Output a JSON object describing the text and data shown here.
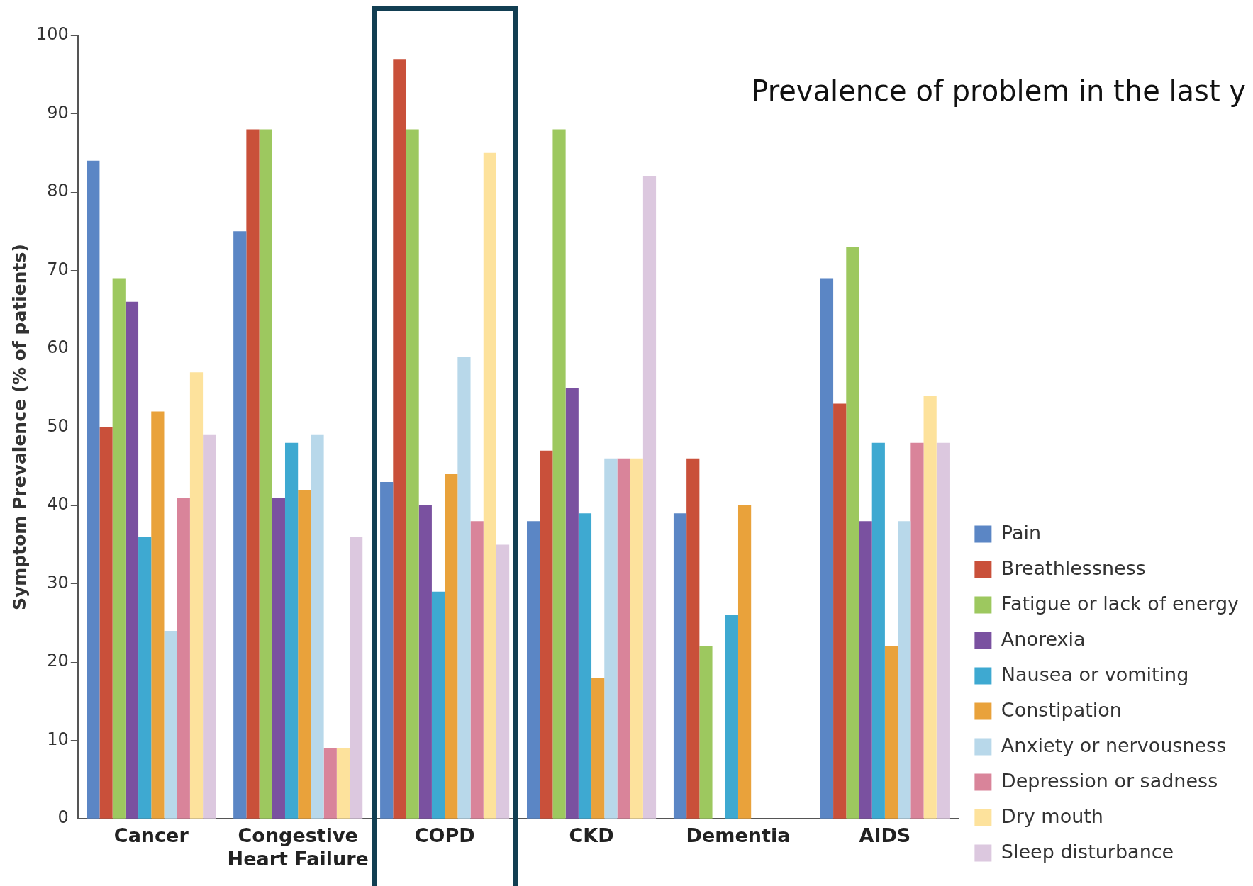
{
  "chart_data": {
    "type": "bar",
    "title": "Prevalence of problem in the last y",
    "ylabel": "Symptom Prevalence (% of patients)",
    "categories": [
      "Cancer",
      "Congestive Heart Failure",
      "COPD",
      "CKD",
      "Dementia",
      "AIDS"
    ],
    "series": [
      {
        "name": "Pain",
        "color": "#5b86c5",
        "values": [
          84,
          75,
          43,
          38,
          39,
          69
        ]
      },
      {
        "name": "Breathlessness",
        "color": "#c9503a",
        "values": [
          50,
          88,
          97,
          47,
          46,
          53
        ]
      },
      {
        "name": "Fatigue or lack of energy",
        "color": "#9dc85f",
        "values": [
          69,
          88,
          88,
          88,
          22,
          73
        ]
      },
      {
        "name": "Anorexia",
        "color": "#7a51a0",
        "values": [
          66,
          41,
          40,
          55,
          null,
          38
        ]
      },
      {
        "name": "Nausea or vomiting",
        "color": "#3ea9d1",
        "values": [
          36,
          48,
          29,
          39,
          26,
          48
        ]
      },
      {
        "name": "Constipation",
        "color": "#e9a23b",
        "values": [
          52,
          42,
          44,
          18,
          40,
          22
        ]
      },
      {
        "name": "Anxiety or nervousness",
        "color": "#b8d8ea",
        "values": [
          24,
          49,
          59,
          46,
          null,
          38
        ]
      },
      {
        "name": "Depression or sadness",
        "color": "#d9849a",
        "values": [
          41,
          9,
          38,
          46,
          null,
          48
        ]
      },
      {
        "name": "Dry mouth",
        "color": "#fde29c",
        "values": [
          57,
          9,
          85,
          46,
          null,
          54
        ]
      },
      {
        "name": "Sleep disturbance",
        "color": "#dcc8df",
        "values": [
          49,
          36,
          35,
          82,
          null,
          48
        ]
      }
    ],
    "ylim": [
      0,
      100
    ],
    "yticks": [
      0,
      10,
      20,
      30,
      40,
      50,
      60,
      70,
      80,
      90,
      100
    ],
    "grid": false,
    "legend": "right"
  }
}
